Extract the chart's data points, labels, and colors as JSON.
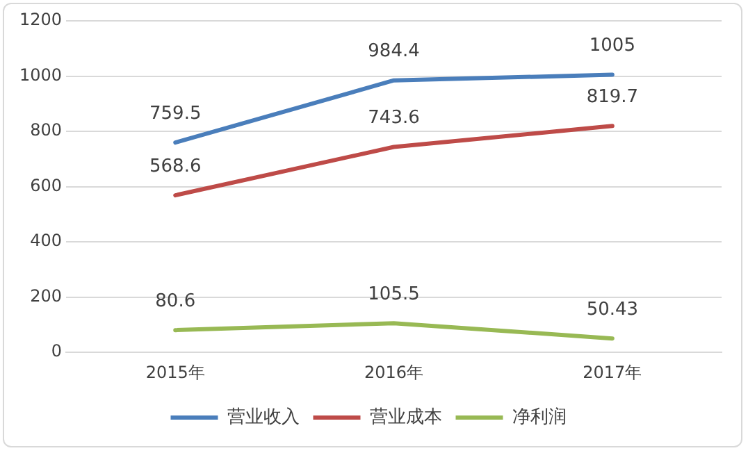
{
  "chart_data": {
    "type": "line",
    "categories": [
      "2015年",
      "2016年",
      "2017年"
    ],
    "series": [
      {
        "name": "营业收入",
        "color": "#4a7ebb",
        "values": [
          759.5,
          984.4,
          1005
        ]
      },
      {
        "name": "营业成本",
        "color": "#be4b48",
        "values": [
          568.6,
          743.6,
          819.7
        ]
      },
      {
        "name": "净利润",
        "color": "#98b954",
        "values": [
          80.6,
          105.5,
          50.43
        ]
      }
    ],
    "ylim": [
      0,
      1200
    ],
    "yticks": [
      0,
      200,
      400,
      600,
      800,
      1000,
      1200
    ],
    "grid": "y",
    "legend": "bottom",
    "marker": "none",
    "line_style": "solid",
    "data_labels": true
  }
}
